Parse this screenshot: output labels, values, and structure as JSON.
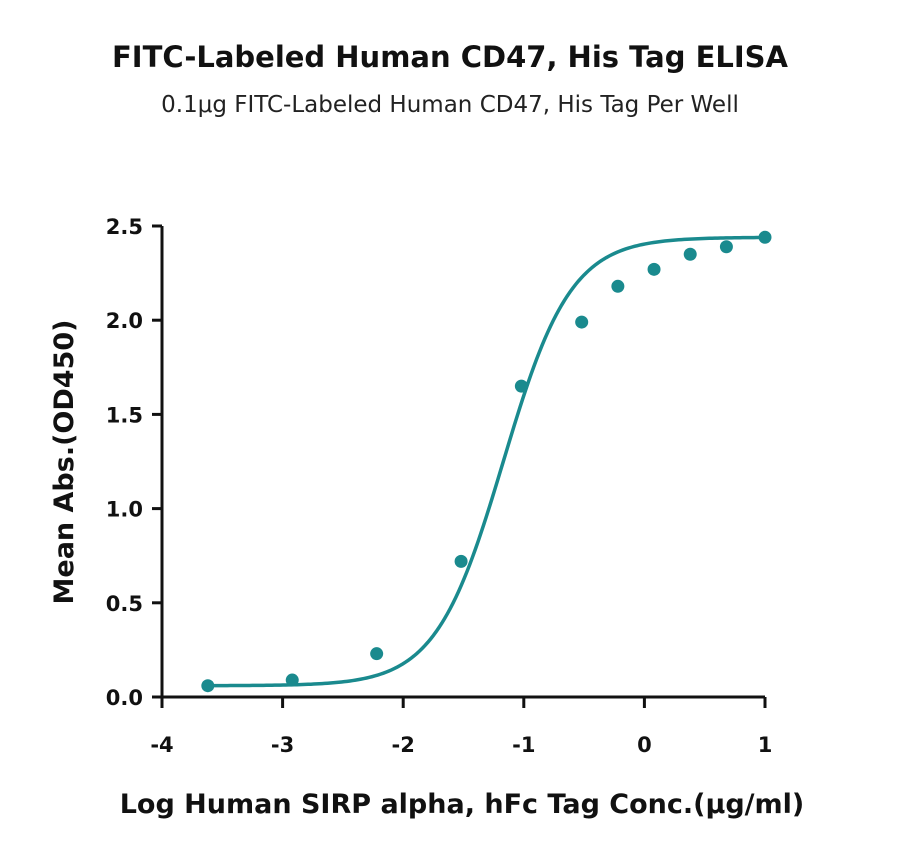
{
  "chart_data": {
    "type": "scatter",
    "title": "FITC-Labeled Human CD47, His Tag ELISA",
    "subtitle": "0.1μg FITC-Labeled Human CD47, His Tag Per Well",
    "xlabel": "Log Human SIRP alpha, hFc Tag Conc.(μg/ml)",
    "ylabel": "Mean Abs.(OD450)",
    "xlim": [
      -4,
      1
    ],
    "ylim": [
      0,
      2.5
    ],
    "x_ticks": [
      "-4",
      "-3",
      "-2",
      "-1",
      "0",
      "1"
    ],
    "y_ticks": [
      "0.0",
      "0.5",
      "1.0",
      "1.5",
      "2.0",
      "2.5"
    ],
    "grid": false,
    "series": [
      {
        "color": "#1a8a8e",
        "x": [
          -3.62,
          -2.92,
          -2.22,
          -1.52,
          -1.02,
          -0.52,
          -0.22,
          0.08,
          0.38,
          0.68,
          1.0
        ],
        "y": [
          0.06,
          0.09,
          0.23,
          0.72,
          1.65,
          1.99,
          2.18,
          2.27,
          2.35,
          2.39,
          2.44
        ],
        "fit": "sigmoid"
      }
    ]
  }
}
